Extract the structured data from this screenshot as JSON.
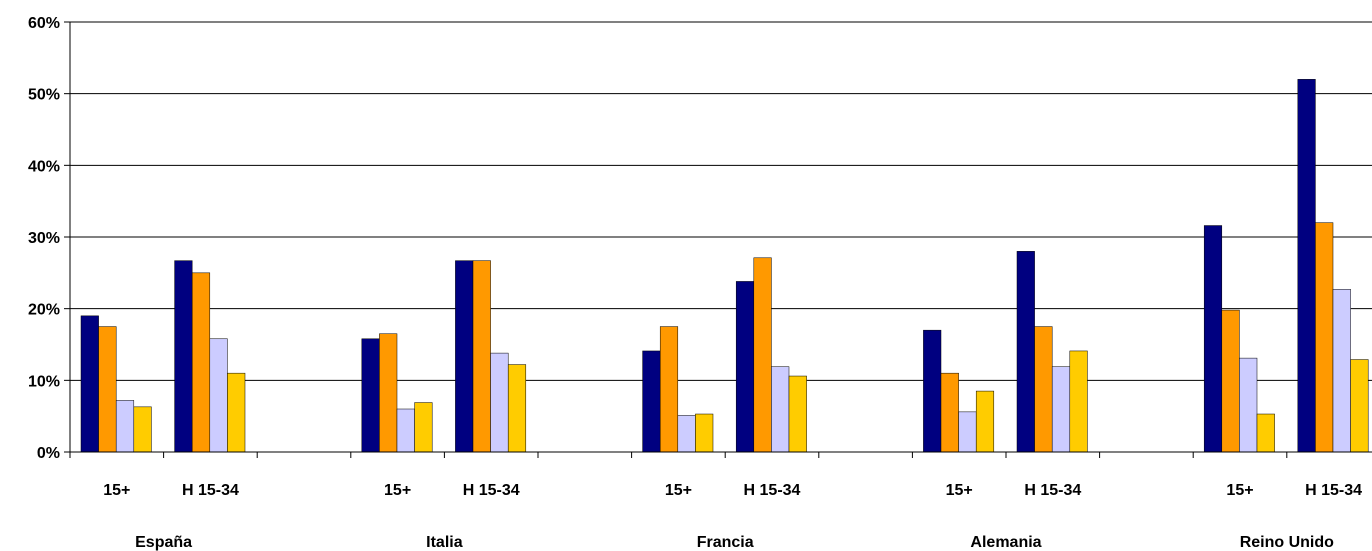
{
  "chart_data": {
    "type": "bar",
    "ylim": [
      0,
      60
    ],
    "yticks": [
      "0%",
      "10%",
      "20%",
      "30%",
      "40%",
      "50%",
      "60%"
    ],
    "grid": true,
    "legend": "none",
    "groups": [
      {
        "label": "España",
        "categories": [
          {
            "label": "15+",
            "values": [
              19,
              17.5,
              7.2,
              6.3
            ]
          },
          {
            "label": "H 15-34",
            "values": [
              26.7,
              25,
              15.8,
              11
            ]
          }
        ]
      },
      {
        "label": "Italia",
        "categories": [
          {
            "label": "15+",
            "values": [
              15.8,
              16.5,
              6,
              6.9
            ]
          },
          {
            "label": "H 15-34",
            "values": [
              26.7,
              26.7,
              13.8,
              12.2
            ]
          }
        ]
      },
      {
        "label": "Francia",
        "categories": [
          {
            "label": "15+",
            "values": [
              14.1,
              17.5,
              5.1,
              5.3
            ]
          },
          {
            "label": "H 15-34",
            "values": [
              23.8,
              27.1,
              11.9,
              10.6
            ]
          }
        ]
      },
      {
        "label": "Alemania",
        "categories": [
          {
            "label": "15+",
            "values": [
              17,
              11,
              5.6,
              8.5
            ]
          },
          {
            "label": "H 15-34",
            "values": [
              28,
              17.5,
              11.9,
              14.1
            ]
          }
        ]
      },
      {
        "label": "Reino Unido",
        "categories": [
          {
            "label": "15+",
            "values": [
              31.6,
              19.8,
              13.1,
              5.3
            ]
          },
          {
            "label": "H 15-34",
            "values": [
              52,
              32,
              22.7,
              12.9
            ]
          }
        ]
      }
    ],
    "colors": [
      "#000080",
      "#ff9900",
      "#ccccff",
      "#ffcc00"
    ]
  }
}
